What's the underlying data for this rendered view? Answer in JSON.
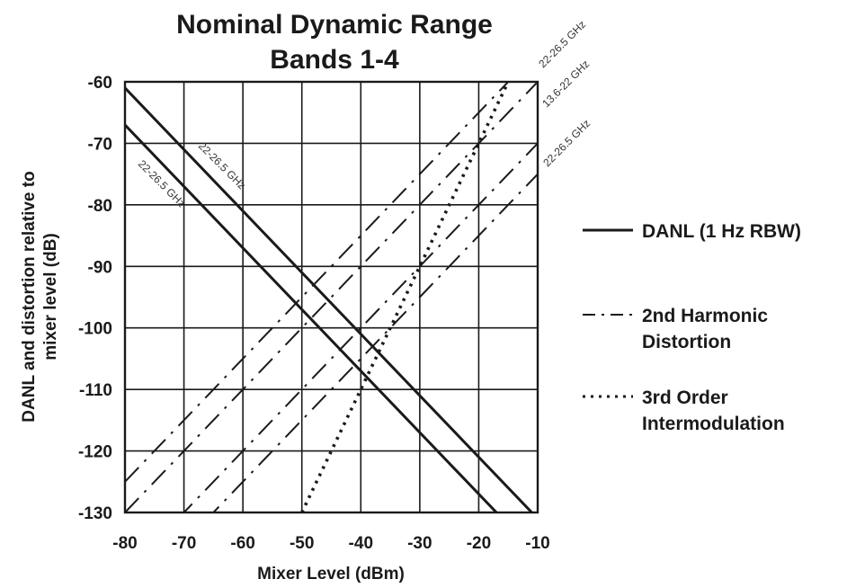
{
  "chart_data": {
    "type": "line",
    "title_lines": [
      "Nominal Dynamic Range",
      "Bands 1-4"
    ],
    "xlabel": "Mixer Level (dBm)",
    "ylabel_lines": [
      "DANL and distortion relative to",
      "mixer level (dB)"
    ],
    "xlim": [
      -80,
      -10
    ],
    "ylim": [
      -130,
      -60
    ],
    "xticks": [
      -80,
      -70,
      -60,
      -50,
      -40,
      -30,
      -20,
      -10
    ],
    "yticks": [
      -60,
      -70,
      -80,
      -90,
      -100,
      -110,
      -120,
      -130
    ],
    "xtick_labels": [
      "-80",
      "-70",
      "-60",
      "-50",
      "-40",
      "-30",
      "-20",
      "-10"
    ],
    "ytick_labels": [
      "-60",
      "-70",
      "-80",
      "-90",
      "-100",
      "-110",
      "-120",
      "-130"
    ],
    "grid": true,
    "legend_position": "right",
    "legend": [
      {
        "style": "solid",
        "label_lines": [
          "DANL (1 Hz RBW)"
        ]
      },
      {
        "style": "dashdot",
        "label_lines": [
          "2nd Harmonic",
          "Distortion"
        ]
      },
      {
        "style": "dotted",
        "label_lines": [
          "3rd Order",
          "Intermodulation"
        ]
      }
    ],
    "series": [
      {
        "type": "DANL",
        "style": "solid",
        "annotation": "22-26.5 GHz",
        "x": [
          -80,
          -10
        ],
        "y": [
          -61,
          -131
        ]
      },
      {
        "type": "DANL",
        "style": "solid",
        "annotation": "22-26.5 GHz",
        "x": [
          -80,
          -10
        ],
        "y": [
          -67,
          -137
        ]
      },
      {
        "type": "2nd Harmonic",
        "style": "dashdot",
        "annotation": "13.6-22 GHz",
        "x": [
          -80,
          -10
        ],
        "y": [
          -130,
          -60
        ]
      },
      {
        "type": "2nd Harmonic",
        "style": "dashdot",
        "annotation": "",
        "x": [
          -80,
          -10
        ],
        "y": [
          -125,
          -55
        ]
      },
      {
        "type": "2nd Harmonic",
        "style": "dashdot",
        "annotation": "22-26.5 GHz",
        "x": [
          -80,
          -10
        ],
        "y": [
          -145,
          -75
        ]
      },
      {
        "type": "2nd Harmonic",
        "style": "dashdot",
        "annotation": "",
        "x": [
          -80,
          -10
        ],
        "y": [
          -140,
          -70
        ]
      },
      {
        "type": "3rd Order",
        "style": "dotted",
        "annotation": "22-26.5 GHz",
        "x": [
          -50,
          -10
        ],
        "y": [
          -130,
          -50
        ]
      }
    ]
  }
}
